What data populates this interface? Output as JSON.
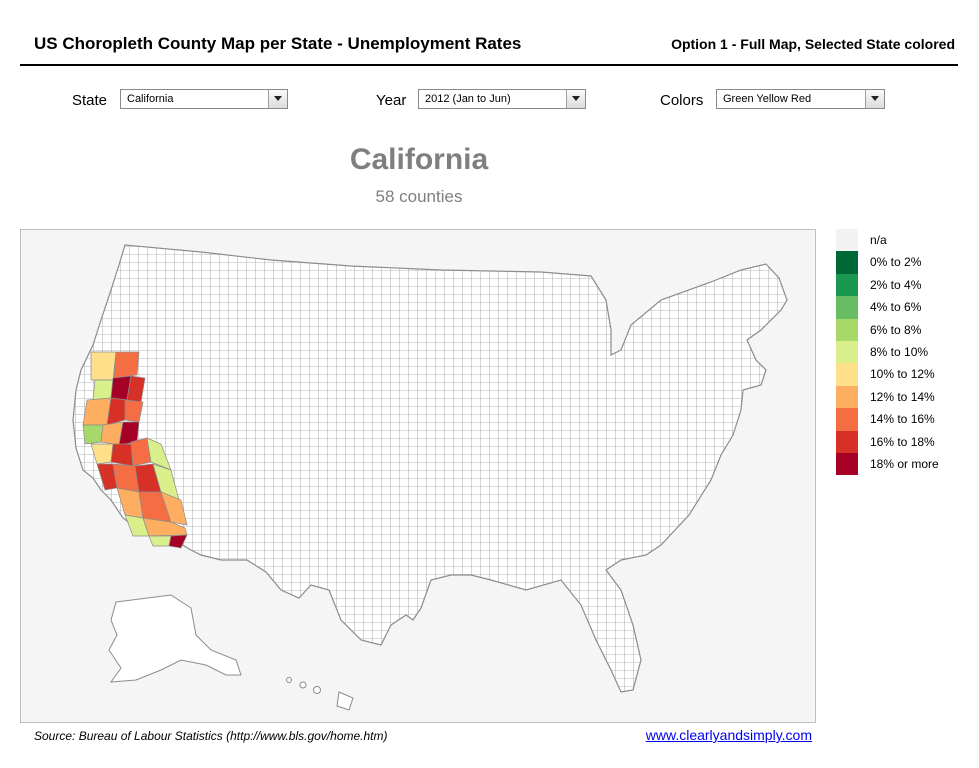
{
  "header": {
    "title": "US Choropleth County Map per State - Unemployment Rates",
    "option": "Option 1 - Full Map, Selected State colored"
  },
  "controls": {
    "state": {
      "label": "State",
      "value": "California"
    },
    "year": {
      "label": "Year",
      "value": "2012 (Jan to Jun)"
    },
    "colors": {
      "label": "Colors",
      "value": "Green Yellow Red"
    }
  },
  "selection": {
    "state_name": "California",
    "county_count": "58 counties"
  },
  "legend": [
    {
      "label": "n/a",
      "color": "#f2f2f2"
    },
    {
      "label": "0%  to 2%",
      "color": "#006837"
    },
    {
      "label": "2% to 4%",
      "color": "#1a9850"
    },
    {
      "label": "4% to 6%",
      "color": "#66bd63"
    },
    {
      "label": "6% to 8%",
      "color": "#a6d96a"
    },
    {
      "label": "8% to 10%",
      "color": "#d9ef8b"
    },
    {
      "label": "10% to 12%",
      "color": "#fee08b"
    },
    {
      "label": "12% to 14%",
      "color": "#fdae61"
    },
    {
      "label": "14% to 16%",
      "color": "#f46d43"
    },
    {
      "label": "16% to 18%",
      "color": "#d73027"
    },
    {
      "label": "18% or more",
      "color": "#a50026"
    }
  ],
  "map": {
    "outline_color": "#8c8c8c",
    "highlight_color": "#e8a050"
  },
  "footer": {
    "source": "Source: Bureau of Labour Statistics (http://www.bls.gov/home.htm)",
    "link": "www.clearlyandsimply.com"
  }
}
